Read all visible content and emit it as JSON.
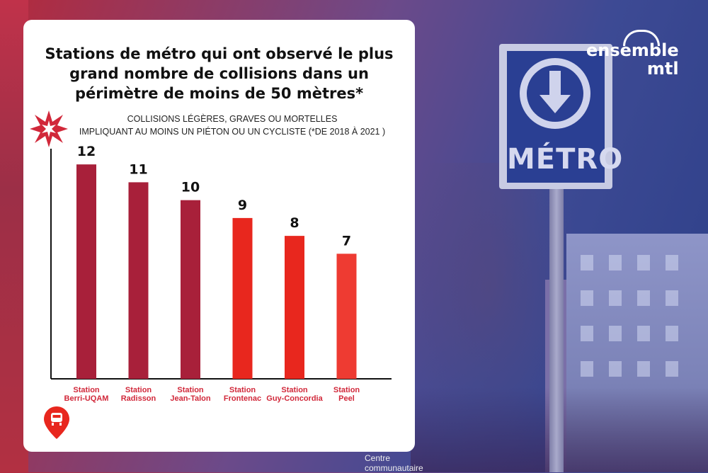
{
  "brand": {
    "logo_line1": "ensemble",
    "logo_line2": "mtl"
  },
  "background": {
    "metro_sign": "MÉTRO",
    "centre_sign": [
      "Centre",
      "communautaire"
    ]
  },
  "colors": {
    "bar_dark": "#a8203a",
    "bar_mid": "#e8271e",
    "bar_light": "#ee3b32",
    "accent": "#d1283a"
  },
  "icons": {
    "burst": "starburst-icon",
    "pin": "metro-location-pin-icon"
  },
  "chart_data": {
    "type": "bar",
    "title": "Stations de métro qui ont observé le plus grand nombre de collisions dans un périmètre de moins de 50 mètres*",
    "title_lines": [
      "Stations de métro qui ont observé le plus",
      "grand nombre de collisions dans un",
      "périmètre de moins de 50 mètres*"
    ],
    "subtitle_lines": [
      "COLLISIONS LÉGÈRES, GRAVES OU MORTELLES",
      "IMPLIQUANT AU MOINS UN PIÉTON OU UN CYCLISTE (*DE 2018 À 2021 )"
    ],
    "categories": [
      [
        "Station",
        "Berri-UQAM"
      ],
      [
        "Station",
        "Radisson"
      ],
      [
        "Station",
        "Jean-Talon"
      ],
      [
        "Station",
        "Frontenac"
      ],
      [
        "Station",
        "Guy-Concordia"
      ],
      [
        "Station",
        "Peel"
      ]
    ],
    "values": [
      12,
      11,
      10,
      9,
      8,
      7
    ],
    "bar_colors": [
      "#a8203a",
      "#a8203a",
      "#a8203a",
      "#e8271e",
      "#e8271e",
      "#ee3b32"
    ],
    "ylim": [
      0,
      12.8
    ],
    "grid": false,
    "xlabel": "",
    "ylabel": ""
  }
}
